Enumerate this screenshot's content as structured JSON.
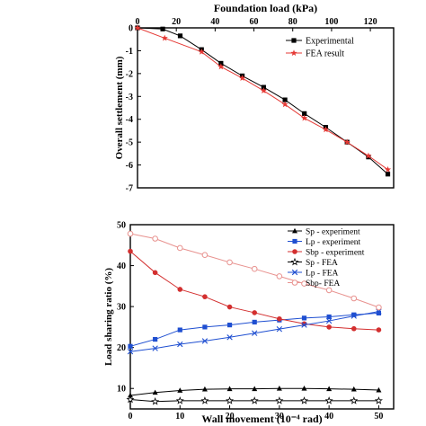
{
  "chart_data": [
    {
      "type": "line",
      "title": "",
      "xlabel": "Foundation load (kPa)",
      "ylabel": "Overall settlement (mm)",
      "x_axis_position": "top",
      "xlim": [
        0,
        132
      ],
      "ylim": [
        -7,
        0
      ],
      "xticks": [
        0,
        20,
        40,
        60,
        80,
        100,
        120
      ],
      "yticks": [
        0,
        -1,
        -2,
        -3,
        -4,
        -5,
        -6,
        -7
      ],
      "grid": false,
      "legend_position": "top-right",
      "series": [
        {
          "name": "Experimental",
          "marker": "square",
          "color": "#000000",
          "x": [
            0,
            13,
            22,
            33,
            43,
            54,
            65,
            76,
            86,
            97,
            108,
            119,
            129
          ],
          "y": [
            0,
            -0.05,
            -0.35,
            -0.95,
            -1.55,
            -2.1,
            -2.6,
            -3.15,
            -3.75,
            -4.35,
            -5.0,
            -5.65,
            -6.4
          ]
        },
        {
          "name": "FEA result",
          "marker": "star",
          "color": "#e53935",
          "x": [
            0,
            14,
            33,
            43,
            54,
            65,
            76,
            86,
            97,
            108,
            119,
            129
          ],
          "y": [
            0,
            -0.45,
            -1.05,
            -1.7,
            -2.2,
            -2.75,
            -3.35,
            -3.95,
            -4.45,
            -5.0,
            -5.6,
            -6.2
          ]
        }
      ]
    },
    {
      "type": "line",
      "title": "",
      "xlabel": "Wall movement (10⁻⁴ rad)",
      "ylabel": "Load sharing ratio (%)",
      "xlim": [
        0,
        53
      ],
      "ylim": [
        5,
        50
      ],
      "xticks": [
        0,
        10,
        20,
        30,
        40,
        50
      ],
      "yticks": [
        10,
        20,
        30,
        40,
        50
      ],
      "grid": false,
      "legend_position": "top-right",
      "series": [
        {
          "name": "Sp - experiment",
          "marker": "triangle",
          "color": "#000000",
          "x": [
            0,
            5,
            10,
            15,
            20,
            25,
            30,
            35,
            40,
            45,
            50
          ],
          "y": [
            8.3,
            9.0,
            9.5,
            9.8,
            9.9,
            9.9,
            10.0,
            10.0,
            9.9,
            9.8,
            9.6
          ]
        },
        {
          "name": "Lp - experiment",
          "marker": "square",
          "color": "#1f4fd1",
          "x": [
            0,
            5,
            10,
            15,
            20,
            25,
            30,
            35,
            40,
            45,
            50
          ],
          "y": [
            20.3,
            22.0,
            24.3,
            25.0,
            25.5,
            26.2,
            26.7,
            27.2,
            27.5,
            28.0,
            28.4
          ]
        },
        {
          "name": "Sbp - experiment",
          "marker": "circle",
          "color": "#d32f2f",
          "x": [
            0,
            5,
            10,
            15,
            20,
            25,
            30,
            35,
            40,
            45,
            50
          ],
          "y": [
            43.5,
            38.3,
            34.2,
            32.4,
            29.9,
            28.5,
            27.0,
            25.8,
            25.0,
            24.6,
            24.3
          ]
        },
        {
          "name": "Sp - FEA",
          "marker": "star-open",
          "color": "#000000",
          "x": [
            0,
            5,
            10,
            15,
            20,
            25,
            30,
            35,
            40,
            45,
            50
          ],
          "y": [
            7.3,
            6.8,
            7.0,
            7.0,
            7.0,
            7.0,
            7.0,
            7.0,
            7.0,
            7.0,
            7.0
          ]
        },
        {
          "name": "Lp - FEA",
          "marker": "x",
          "color": "#1f4fd1",
          "x": [
            0,
            5,
            10,
            15,
            20,
            25,
            30,
            35,
            40,
            45,
            50
          ],
          "y": [
            19.0,
            19.8,
            20.8,
            21.6,
            22.5,
            23.5,
            24.5,
            25.5,
            26.5,
            27.7,
            28.8
          ]
        },
        {
          "name": "Sbp- FEA",
          "marker": "circle-open",
          "color": "#e8928f",
          "x": [
            0,
            5,
            10,
            15,
            20,
            25,
            30,
            35,
            40,
            45,
            50
          ],
          "y": [
            47.8,
            46.6,
            44.3,
            42.6,
            40.8,
            39.2,
            37.4,
            35.6,
            34.0,
            32.0,
            29.8
          ]
        }
      ]
    }
  ]
}
